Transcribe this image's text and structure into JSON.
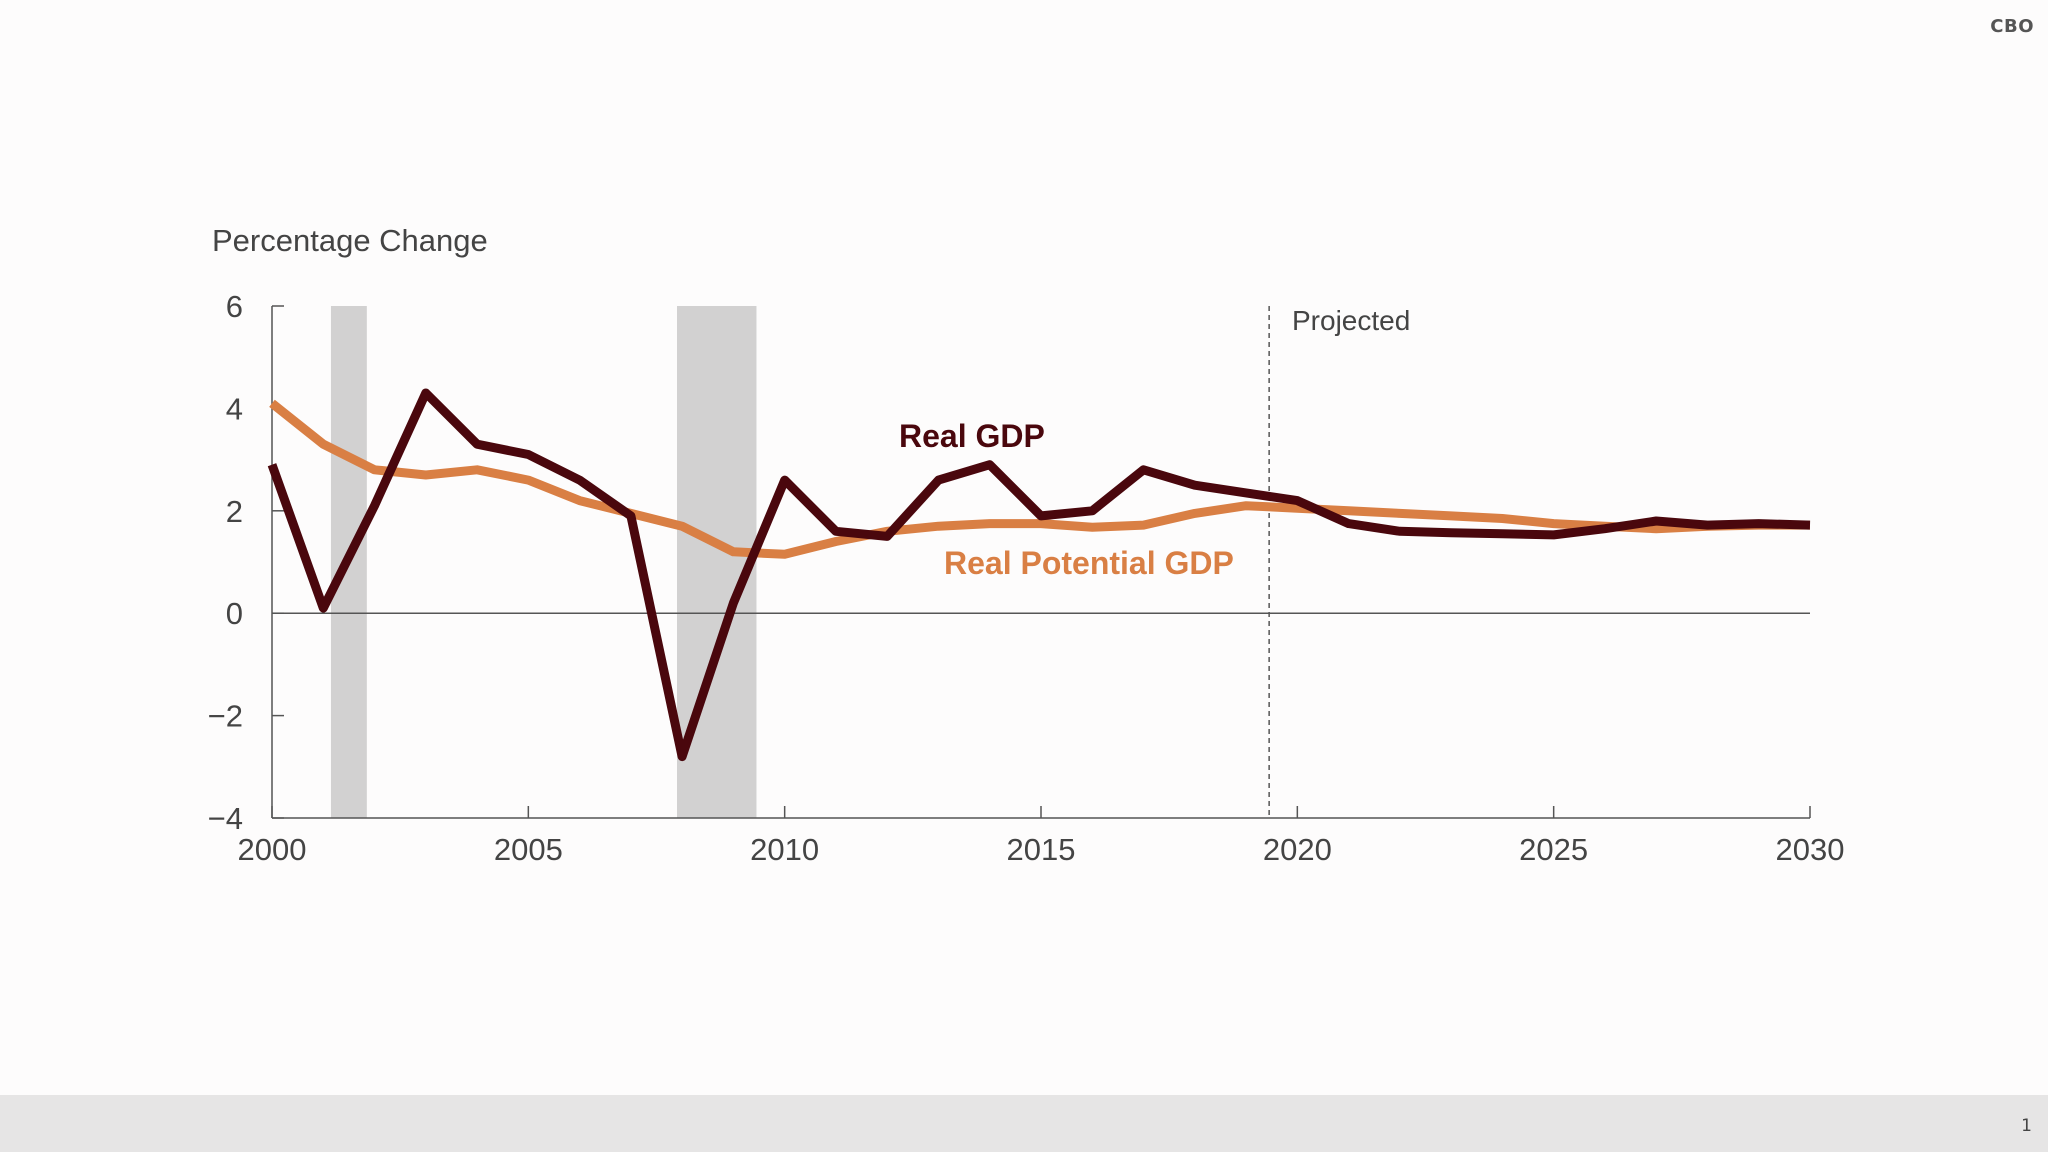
{
  "header": {
    "source_mark": "CBO"
  },
  "footer": {
    "page_number": "1"
  },
  "colors": {
    "real_gdp": "#4a070d",
    "real_potential_gdp": "#d97f44",
    "recession_shading": "#d2d1d1",
    "axis": "#555555"
  },
  "chart_data": {
    "type": "line",
    "ylabel": "Percentage Change",
    "xlabel": "",
    "xlim": [
      2000,
      2030
    ],
    "ylim": [
      -4,
      6
    ],
    "x_ticks": [
      2000,
      2005,
      2010,
      2015,
      2020,
      2025,
      2030
    ],
    "y_ticks": [
      6,
      4,
      2,
      0,
      -2,
      -4
    ],
    "x_tick_labels": [
      "2000",
      "2005",
      "2010",
      "2015",
      "2020",
      "2025",
      "2030"
    ],
    "y_tick_labels": [
      "6",
      "4",
      "2",
      "0",
      "−2",
      "−4"
    ],
    "grid": false,
    "recessions": [
      {
        "start": 2001.15,
        "end": 2001.85
      },
      {
        "start": 2007.9,
        "end": 2009.45
      }
    ],
    "projection_start": 2019.45,
    "projection_label": "Projected",
    "series": [
      {
        "name": "Real GDP",
        "x": [
          2000,
          2001,
          2002,
          2003,
          2004,
          2005,
          2006,
          2007,
          2008,
          2009,
          2010,
          2011,
          2012,
          2013,
          2014,
          2015,
          2016,
          2017,
          2018,
          2019,
          2020,
          2021,
          2022,
          2023,
          2024,
          2025,
          2026,
          2027,
          2028,
          2029,
          2030
        ],
        "values": [
          2.9,
          0.1,
          2.1,
          4.3,
          3.3,
          3.1,
          2.6,
          1.9,
          -2.8,
          0.2,
          2.6,
          1.6,
          1.5,
          2.6,
          2.9,
          1.9,
          2.0,
          2.8,
          2.5,
          2.35,
          2.2,
          1.75,
          1.6,
          1.57,
          1.55,
          1.53,
          1.65,
          1.8,
          1.72,
          1.75,
          1.72
        ]
      },
      {
        "name": "Real Potential GDP",
        "x": [
          2000,
          2001,
          2002,
          2003,
          2004,
          2005,
          2006,
          2007,
          2008,
          2009,
          2010,
          2011,
          2012,
          2013,
          2014,
          2015,
          2016,
          2017,
          2018,
          2019,
          2020,
          2021,
          2022,
          2023,
          2024,
          2025,
          2026,
          2027,
          2028,
          2029,
          2030
        ],
        "values": [
          4.1,
          3.3,
          2.8,
          2.7,
          2.8,
          2.6,
          2.2,
          1.95,
          1.7,
          1.2,
          1.15,
          1.4,
          1.6,
          1.7,
          1.75,
          1.75,
          1.68,
          1.72,
          1.95,
          2.1,
          2.05,
          2.0,
          1.95,
          1.9,
          1.85,
          1.75,
          1.7,
          1.65,
          1.7,
          1.72,
          1.72
        ]
      }
    ]
  }
}
